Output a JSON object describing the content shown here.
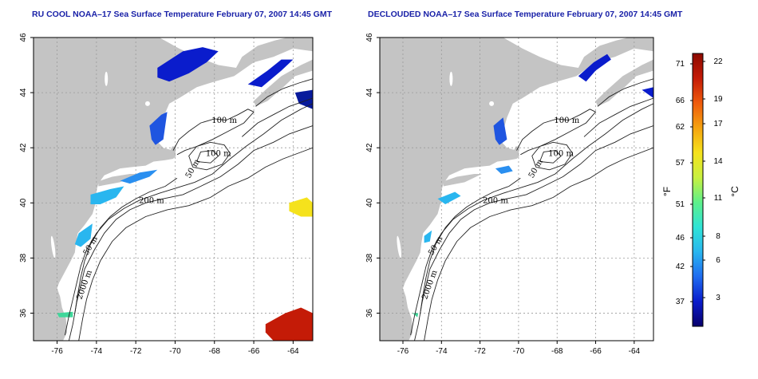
{
  "panels": [
    {
      "title": "RU COOL NOAA–17 Sea Surface Temperature February 07, 2007 14:45 GMT",
      "contour_labels": [
        "100 m",
        "100 m",
        "50 m",
        "200 m",
        "50 m",
        "2000 m"
      ],
      "variant": "full"
    },
    {
      "title": "DECLOUDED NOAA–17 Sea Surface Temperature February 07, 2007 14:45 GMT",
      "contour_labels": [
        "100 m",
        "100 m",
        "50 m",
        "200 m",
        "50 m",
        "2000 m"
      ],
      "variant": "declouded"
    }
  ],
  "axes": {
    "x_ticks": [
      "-76",
      "-74",
      "-72",
      "-70",
      "-68",
      "-66",
      "-64"
    ],
    "y_ticks": [
      "46",
      "44",
      "42",
      "40",
      "38",
      "36"
    ]
  },
  "colorbar": {
    "fahrenheit_ticks": [
      "71",
      "66",
      "62",
      "57",
      "51",
      "46",
      "42",
      "37"
    ],
    "celsius_ticks": [
      "22",
      "19",
      "17",
      "14",
      "11",
      "8",
      "6",
      "3"
    ],
    "fahrenheit_unit": "°F",
    "celsius_unit": "°C",
    "colors": [
      "#08006b",
      "#0a1ccc",
      "#1f6cf0",
      "#29b6ef",
      "#30e4d6",
      "#5ef08a",
      "#c8f040",
      "#f5e21c",
      "#f5a30f",
      "#ef5b0c",
      "#c41b07",
      "#8c0a00"
    ]
  }
}
